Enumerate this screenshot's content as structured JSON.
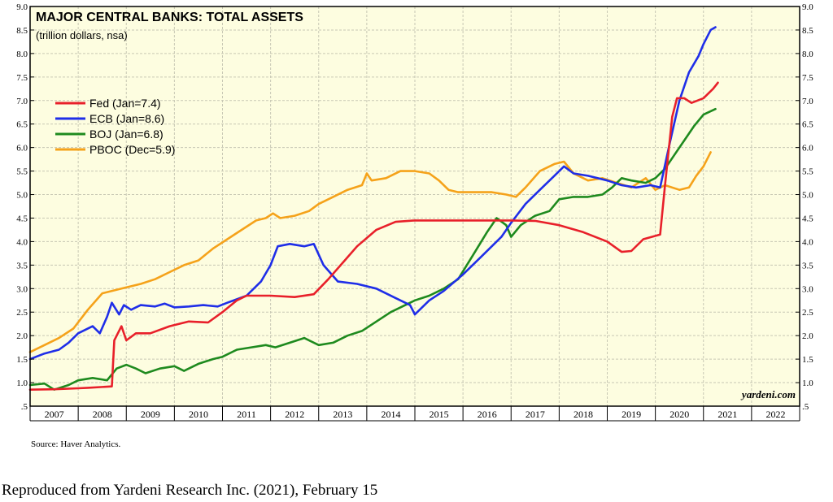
{
  "chart_data": {
    "type": "line",
    "title": "MAJOR CENTRAL BANKS: TOTAL ASSETS",
    "subtitle": "(trillion dollars, nsa)",
    "ylim": [
      0.5,
      9.0
    ],
    "xlim": [
      2007.0,
      2023.0
    ],
    "y_ticks": [
      "9.0",
      "8.5",
      "8.0",
      "7.5",
      "7.0",
      "6.5",
      "6.0",
      "5.5",
      "5.0",
      "4.5",
      "4.0",
      "3.5",
      "3.0",
      "2.5",
      "2.0",
      "1.5",
      "1.0",
      ".5"
    ],
    "y_tick_values": [
      9.0,
      8.5,
      8.0,
      7.5,
      7.0,
      6.5,
      6.0,
      5.5,
      5.0,
      4.5,
      4.0,
      3.5,
      3.0,
      2.5,
      2.0,
      1.5,
      1.0,
      0.5
    ],
    "x_categories": [
      "2007",
      "2008",
      "2009",
      "2010",
      "2011",
      "2012",
      "2013",
      "2014",
      "2015",
      "2016",
      "2017",
      "2018",
      "2019",
      "2020",
      "2021",
      "2022"
    ],
    "grid": true,
    "legend_position": "top-left",
    "background_color": "#fdfde0",
    "watermark": "yardeni.com",
    "series": [
      {
        "name": "Fed (Jan=7.4)",
        "color": "#e8202a",
        "points": [
          [
            2007.0,
            0.85
          ],
          [
            2007.5,
            0.86
          ],
          [
            2008.0,
            0.88
          ],
          [
            2008.2,
            0.89
          ],
          [
            2008.7,
            0.92
          ],
          [
            2008.75,
            1.9
          ],
          [
            2008.9,
            2.2
          ],
          [
            2009.0,
            1.9
          ],
          [
            2009.2,
            2.05
          ],
          [
            2009.5,
            2.05
          ],
          [
            2009.9,
            2.2
          ],
          [
            2010.3,
            2.3
          ],
          [
            2010.7,
            2.28
          ],
          [
            2011.0,
            2.5
          ],
          [
            2011.3,
            2.75
          ],
          [
            2011.5,
            2.85
          ],
          [
            2012.0,
            2.85
          ],
          [
            2012.5,
            2.82
          ],
          [
            2012.9,
            2.88
          ],
          [
            2013.2,
            3.2
          ],
          [
            2013.5,
            3.55
          ],
          [
            2013.8,
            3.9
          ],
          [
            2014.2,
            4.25
          ],
          [
            2014.6,
            4.42
          ],
          [
            2015.0,
            4.45
          ],
          [
            2015.5,
            4.45
          ],
          [
            2016.0,
            4.45
          ],
          [
            2016.5,
            4.45
          ],
          [
            2017.0,
            4.45
          ],
          [
            2017.5,
            4.44
          ],
          [
            2018.0,
            4.35
          ],
          [
            2018.5,
            4.2
          ],
          [
            2019.0,
            4.0
          ],
          [
            2019.3,
            3.78
          ],
          [
            2019.5,
            3.8
          ],
          [
            2019.75,
            4.05
          ],
          [
            2020.1,
            4.15
          ],
          [
            2020.2,
            5.2
          ],
          [
            2020.35,
            6.65
          ],
          [
            2020.45,
            7.05
          ],
          [
            2020.6,
            7.05
          ],
          [
            2020.75,
            6.95
          ],
          [
            2021.0,
            7.05
          ],
          [
            2021.2,
            7.25
          ],
          [
            2021.3,
            7.38
          ]
        ]
      },
      {
        "name": "ECB (Jan=8.6)",
        "color": "#1f2ee8",
        "points": [
          [
            2007.0,
            1.5
          ],
          [
            2007.3,
            1.62
          ],
          [
            2007.6,
            1.7
          ],
          [
            2007.8,
            1.85
          ],
          [
            2008.0,
            2.05
          ],
          [
            2008.3,
            2.2
          ],
          [
            2008.45,
            2.05
          ],
          [
            2008.6,
            2.4
          ],
          [
            2008.7,
            2.7
          ],
          [
            2008.85,
            2.45
          ],
          [
            2008.95,
            2.65
          ],
          [
            2009.1,
            2.55
          ],
          [
            2009.3,
            2.65
          ],
          [
            2009.6,
            2.62
          ],
          [
            2009.8,
            2.68
          ],
          [
            2010.0,
            2.6
          ],
          [
            2010.3,
            2.62
          ],
          [
            2010.6,
            2.65
          ],
          [
            2010.9,
            2.62
          ],
          [
            2011.1,
            2.7
          ],
          [
            2011.5,
            2.85
          ],
          [
            2011.8,
            3.15
          ],
          [
            2012.0,
            3.5
          ],
          [
            2012.15,
            3.9
          ],
          [
            2012.4,
            3.95
          ],
          [
            2012.7,
            3.9
          ],
          [
            2012.9,
            3.95
          ],
          [
            2013.1,
            3.5
          ],
          [
            2013.4,
            3.15
          ],
          [
            2013.8,
            3.1
          ],
          [
            2014.2,
            3.0
          ],
          [
            2014.6,
            2.8
          ],
          [
            2014.9,
            2.65
          ],
          [
            2015.0,
            2.45
          ],
          [
            2015.3,
            2.75
          ],
          [
            2015.6,
            2.95
          ],
          [
            2016.0,
            3.3
          ],
          [
            2016.4,
            3.7
          ],
          [
            2016.8,
            4.1
          ],
          [
            2017.0,
            4.4
          ],
          [
            2017.3,
            4.8
          ],
          [
            2017.6,
            5.1
          ],
          [
            2017.9,
            5.4
          ],
          [
            2018.1,
            5.6
          ],
          [
            2018.3,
            5.45
          ],
          [
            2018.6,
            5.4
          ],
          [
            2019.0,
            5.3
          ],
          [
            2019.3,
            5.2
          ],
          [
            2019.6,
            5.15
          ],
          [
            2019.9,
            5.2
          ],
          [
            2020.1,
            5.15
          ],
          [
            2020.3,
            6.1
          ],
          [
            2020.5,
            7.0
          ],
          [
            2020.7,
            7.6
          ],
          [
            2020.9,
            7.95
          ],
          [
            2021.0,
            8.2
          ],
          [
            2021.15,
            8.5
          ],
          [
            2021.25,
            8.56
          ]
        ]
      },
      {
        "name": "BOJ (Jan=6.8)",
        "color": "#1e8a1e",
        "points": [
          [
            2007.0,
            0.95
          ],
          [
            2007.3,
            0.98
          ],
          [
            2007.5,
            0.85
          ],
          [
            2007.8,
            0.95
          ],
          [
            2008.0,
            1.05
          ],
          [
            2008.3,
            1.1
          ],
          [
            2008.6,
            1.05
          ],
          [
            2008.8,
            1.3
          ],
          [
            2009.0,
            1.38
          ],
          [
            2009.2,
            1.3
          ],
          [
            2009.4,
            1.2
          ],
          [
            2009.7,
            1.3
          ],
          [
            2010.0,
            1.35
          ],
          [
            2010.2,
            1.25
          ],
          [
            2010.5,
            1.4
          ],
          [
            2010.8,
            1.5
          ],
          [
            2011.0,
            1.55
          ],
          [
            2011.3,
            1.7
          ],
          [
            2011.6,
            1.75
          ],
          [
            2011.9,
            1.8
          ],
          [
            2012.1,
            1.75
          ],
          [
            2012.4,
            1.85
          ],
          [
            2012.7,
            1.95
          ],
          [
            2013.0,
            1.8
          ],
          [
            2013.3,
            1.85
          ],
          [
            2013.6,
            2.0
          ],
          [
            2013.9,
            2.1
          ],
          [
            2014.2,
            2.3
          ],
          [
            2014.5,
            2.5
          ],
          [
            2014.8,
            2.65
          ],
          [
            2015.0,
            2.75
          ],
          [
            2015.3,
            2.85
          ],
          [
            2015.6,
            3.0
          ],
          [
            2015.9,
            3.2
          ],
          [
            2016.2,
            3.7
          ],
          [
            2016.5,
            4.2
          ],
          [
            2016.7,
            4.5
          ],
          [
            2016.9,
            4.35
          ],
          [
            2017.0,
            4.1
          ],
          [
            2017.2,
            4.35
          ],
          [
            2017.5,
            4.55
          ],
          [
            2017.8,
            4.65
          ],
          [
            2018.0,
            4.9
          ],
          [
            2018.3,
            4.95
          ],
          [
            2018.6,
            4.95
          ],
          [
            2018.9,
            5.0
          ],
          [
            2019.1,
            5.15
          ],
          [
            2019.3,
            5.35
          ],
          [
            2019.5,
            5.3
          ],
          [
            2019.8,
            5.25
          ],
          [
            2020.0,
            5.35
          ],
          [
            2020.2,
            5.55
          ],
          [
            2020.4,
            5.85
          ],
          [
            2020.6,
            6.15
          ],
          [
            2020.8,
            6.45
          ],
          [
            2021.0,
            6.7
          ],
          [
            2021.25,
            6.82
          ]
        ]
      },
      {
        "name": "PBOC (Dec=5.9)",
        "color": "#f5a21a",
        "points": [
          [
            2007.0,
            1.65
          ],
          [
            2007.3,
            1.8
          ],
          [
            2007.6,
            1.95
          ],
          [
            2007.9,
            2.15
          ],
          [
            2008.2,
            2.55
          ],
          [
            2008.5,
            2.9
          ],
          [
            2008.9,
            3.0
          ],
          [
            2009.3,
            3.1
          ],
          [
            2009.6,
            3.2
          ],
          [
            2009.9,
            3.35
          ],
          [
            2010.2,
            3.5
          ],
          [
            2010.5,
            3.6
          ],
          [
            2010.8,
            3.85
          ],
          [
            2011.1,
            4.05
          ],
          [
            2011.4,
            4.25
          ],
          [
            2011.7,
            4.45
          ],
          [
            2011.9,
            4.5
          ],
          [
            2012.05,
            4.6
          ],
          [
            2012.2,
            4.5
          ],
          [
            2012.5,
            4.55
          ],
          [
            2012.8,
            4.65
          ],
          [
            2013.0,
            4.8
          ],
          [
            2013.3,
            4.95
          ],
          [
            2013.6,
            5.1
          ],
          [
            2013.9,
            5.2
          ],
          [
            2014.0,
            5.45
          ],
          [
            2014.1,
            5.3
          ],
          [
            2014.4,
            5.35
          ],
          [
            2014.7,
            5.5
          ],
          [
            2015.0,
            5.5
          ],
          [
            2015.3,
            5.45
          ],
          [
            2015.5,
            5.3
          ],
          [
            2015.7,
            5.1
          ],
          [
            2015.9,
            5.05
          ],
          [
            2016.2,
            5.05
          ],
          [
            2016.6,
            5.05
          ],
          [
            2016.9,
            5.0
          ],
          [
            2017.1,
            4.95
          ],
          [
            2017.3,
            5.15
          ],
          [
            2017.6,
            5.5
          ],
          [
            2017.9,
            5.65
          ],
          [
            2018.1,
            5.7
          ],
          [
            2018.3,
            5.45
          ],
          [
            2018.6,
            5.3
          ],
          [
            2018.9,
            5.35
          ],
          [
            2019.2,
            5.25
          ],
          [
            2019.5,
            5.15
          ],
          [
            2019.8,
            5.35
          ],
          [
            2020.0,
            5.1
          ],
          [
            2020.2,
            5.2
          ],
          [
            2020.5,
            5.1
          ],
          [
            2020.7,
            5.15
          ],
          [
            2020.85,
            5.4
          ],
          [
            2021.0,
            5.6
          ],
          [
            2021.15,
            5.9
          ]
        ]
      }
    ]
  },
  "source_text": "Source: Haver Analytics.",
  "caption_text": "Reproduced from Yardeni Research Inc. (2021), February 15"
}
